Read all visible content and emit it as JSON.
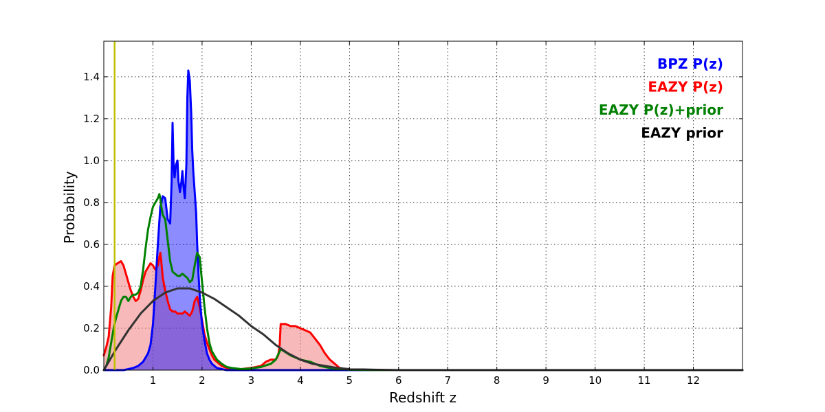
{
  "chart_data": {
    "type": "area",
    "title": "",
    "xlabel": "Redshift z",
    "ylabel": "Probability",
    "xlim": [
      0.0,
      13.0
    ],
    "ylim": [
      0.0,
      1.57
    ],
    "x_ticks": [
      1,
      2,
      3,
      4,
      5,
      6,
      7,
      8,
      9,
      10,
      11,
      12
    ],
    "y_ticks": [
      0.0,
      0.2,
      0.4,
      0.6,
      0.8,
      1.0,
      1.2,
      1.4
    ],
    "grid": true,
    "legend_position": "top-right",
    "vline": {
      "x": 0.22,
      "color": "#bfbf00"
    },
    "series": [
      {
        "name": "EAZY P(z)",
        "color": "#ff0000",
        "fill": "#f08080",
        "fill_opacity": 0.55,
        "x": [
          0.0,
          0.05,
          0.1,
          0.15,
          0.18,
          0.22,
          0.28,
          0.35,
          0.4,
          0.45,
          0.5,
          0.55,
          0.6,
          0.65,
          0.7,
          0.75,
          0.8,
          0.85,
          0.9,
          0.95,
          1.0,
          1.05,
          1.1,
          1.13,
          1.15,
          1.17,
          1.2,
          1.25,
          1.3,
          1.35,
          1.4,
          1.45,
          1.5,
          1.55,
          1.6,
          1.65,
          1.7,
          1.75,
          1.8,
          1.85,
          1.9,
          1.95,
          2.0,
          2.05,
          2.1,
          2.15,
          2.2,
          2.25,
          2.3,
          2.35,
          2.4,
          2.45,
          2.5,
          2.6,
          2.7,
          2.8,
          2.9,
          3.0,
          3.1,
          3.2,
          3.3,
          3.4,
          3.5,
          3.55,
          3.58,
          3.6,
          3.7,
          3.8,
          3.9,
          4.0,
          4.1,
          4.2,
          4.3,
          4.4,
          4.5,
          4.6,
          4.7,
          4.8,
          4.9,
          5.0,
          5.5,
          6.0,
          7.0,
          8.0,
          9.0,
          10.0,
          11.0,
          12.0,
          13.0
        ],
        "values": [
          0.07,
          0.11,
          0.16,
          0.3,
          0.45,
          0.5,
          0.51,
          0.52,
          0.5,
          0.46,
          0.42,
          0.38,
          0.35,
          0.33,
          0.34,
          0.38,
          0.43,
          0.47,
          0.49,
          0.51,
          0.5,
          0.48,
          0.5,
          0.54,
          0.56,
          0.52,
          0.44,
          0.38,
          0.33,
          0.29,
          0.28,
          0.28,
          0.27,
          0.27,
          0.27,
          0.28,
          0.27,
          0.26,
          0.28,
          0.33,
          0.35,
          0.3,
          0.24,
          0.17,
          0.13,
          0.1,
          0.07,
          0.05,
          0.04,
          0.03,
          0.02,
          0.015,
          0.01,
          0.005,
          0.005,
          0.005,
          0.008,
          0.01,
          0.015,
          0.02,
          0.04,
          0.05,
          0.05,
          0.07,
          0.12,
          0.22,
          0.22,
          0.21,
          0.21,
          0.2,
          0.19,
          0.18,
          0.15,
          0.12,
          0.08,
          0.05,
          0.03,
          0.01,
          0.005,
          0.002,
          0.001,
          0.0,
          0.0,
          0.0,
          0.0,
          0.0,
          0.0,
          0.0,
          0.0
        ]
      },
      {
        "name": "BPZ P(z)",
        "color": "#0000ff",
        "fill": "#0000ff",
        "fill_opacity": 0.45,
        "x": [
          0.0,
          0.4,
          0.5,
          0.6,
          0.7,
          0.8,
          0.9,
          0.95,
          1.0,
          1.05,
          1.1,
          1.15,
          1.2,
          1.25,
          1.3,
          1.35,
          1.38,
          1.4,
          1.42,
          1.44,
          1.47,
          1.5,
          1.52,
          1.55,
          1.58,
          1.6,
          1.62,
          1.65,
          1.68,
          1.7,
          1.72,
          1.75,
          1.78,
          1.8,
          1.82,
          1.85,
          1.88,
          1.9,
          1.93,
          1.96,
          2.0,
          2.05,
          2.1,
          2.15,
          2.2,
          2.3,
          2.4,
          2.5,
          2.6,
          2.7,
          2.8,
          3.0,
          3.5,
          4.0,
          5.0,
          6.0,
          8.0,
          10.0,
          12.0,
          13.0
        ],
        "values": [
          0.0,
          0.0,
          0.005,
          0.01,
          0.02,
          0.04,
          0.08,
          0.12,
          0.22,
          0.4,
          0.6,
          0.78,
          0.83,
          0.82,
          0.72,
          0.7,
          0.9,
          1.18,
          0.98,
          0.92,
          0.98,
          1.0,
          0.9,
          0.85,
          0.9,
          0.95,
          0.88,
          0.82,
          0.98,
          1.3,
          1.43,
          1.38,
          1.22,
          1.05,
          0.95,
          0.85,
          0.75,
          0.6,
          0.45,
          0.32,
          0.22,
          0.14,
          0.08,
          0.05,
          0.03,
          0.01,
          0.005,
          0.0,
          0.0,
          0.0,
          0.0,
          0.0,
          0.0,
          0.0,
          0.0,
          0.0,
          0.0,
          0.0,
          0.0,
          0.0
        ]
      },
      {
        "name": "EAZY P(z)+prior",
        "color": "#008000",
        "x": [
          0.0,
          0.05,
          0.1,
          0.15,
          0.2,
          0.25,
          0.3,
          0.35,
          0.4,
          0.45,
          0.5,
          0.55,
          0.6,
          0.65,
          0.7,
          0.75,
          0.8,
          0.85,
          0.9,
          0.95,
          1.0,
          1.05,
          1.1,
          1.13,
          1.15,
          1.17,
          1.2,
          1.25,
          1.3,
          1.35,
          1.4,
          1.45,
          1.5,
          1.55,
          1.6,
          1.65,
          1.7,
          1.75,
          1.8,
          1.85,
          1.9,
          1.95,
          2.0,
          2.05,
          2.1,
          2.15,
          2.2,
          2.25,
          2.3,
          2.4,
          2.5,
          2.6,
          2.8,
          3.0,
          3.2,
          3.4,
          3.5,
          3.6,
          3.8,
          4.0,
          4.2,
          4.4,
          4.6,
          4.8,
          5.0,
          5.5,
          6.0,
          8.0,
          10.0,
          13.0
        ],
        "values": [
          0.0,
          0.02,
          0.06,
          0.13,
          0.2,
          0.25,
          0.29,
          0.33,
          0.35,
          0.35,
          0.33,
          0.35,
          0.36,
          0.36,
          0.37,
          0.4,
          0.48,
          0.58,
          0.67,
          0.73,
          0.78,
          0.8,
          0.82,
          0.84,
          0.82,
          0.78,
          0.74,
          0.72,
          0.62,
          0.52,
          0.47,
          0.46,
          0.45,
          0.45,
          0.46,
          0.45,
          0.44,
          0.42,
          0.43,
          0.5,
          0.56,
          0.54,
          0.42,
          0.3,
          0.2,
          0.13,
          0.09,
          0.07,
          0.05,
          0.03,
          0.015,
          0.01,
          0.005,
          0.008,
          0.015,
          0.03,
          0.05,
          0.1,
          0.07,
          0.05,
          0.04,
          0.02,
          0.01,
          0.005,
          0.002,
          0.0,
          0.0,
          0.0,
          0.0,
          0.0
        ]
      },
      {
        "name": "EAZY prior",
        "color": "#333333",
        "x": [
          0.0,
          0.25,
          0.5,
          0.75,
          1.0,
          1.25,
          1.5,
          1.75,
          2.0,
          2.25,
          2.5,
          2.75,
          3.0,
          3.25,
          3.5,
          3.75,
          4.0,
          4.25,
          4.5,
          4.75,
          5.0,
          5.5,
          6.0,
          7.0,
          8.0,
          10.0,
          13.0
        ],
        "values": [
          0.0,
          0.1,
          0.19,
          0.27,
          0.33,
          0.37,
          0.39,
          0.39,
          0.37,
          0.34,
          0.3,
          0.26,
          0.21,
          0.17,
          0.12,
          0.08,
          0.05,
          0.03,
          0.02,
          0.01,
          0.005,
          0.002,
          0.0,
          0.0,
          0.0,
          0.0,
          0.0
        ]
      }
    ],
    "legend": [
      {
        "label": "BPZ P(z)",
        "color": "#0000ff"
      },
      {
        "label": "EAZY P(z)",
        "color": "#ff0000"
      },
      {
        "label": "EAZY P(z)+prior",
        "color": "#008000"
      },
      {
        "label": "EAZY prior",
        "color": "#000000"
      }
    ]
  }
}
